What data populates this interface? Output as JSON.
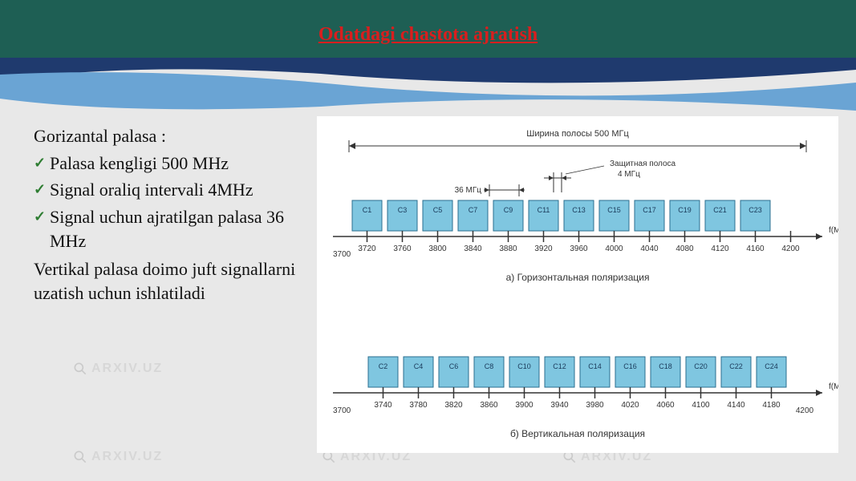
{
  "title": "Odatdagi chastota ajratish",
  "text": {
    "intro": "Gorizantal palasa :",
    "b1": "Palasa kengligi 500 MHz",
    "b2": "Signal oraliq intervali 4MHz",
    "b3": "Signal uchun ajratilgan palasa 36 MHz",
    "outro": "Vertikal palasa doimo juft signallarni uzatish uchun ishlatiladi"
  },
  "watermark": "ARXIV.UZ",
  "diagram": {
    "top": {
      "bandwidth_label": "Ширина полосы 500 МГц",
      "guard_label": "Защитная полоса",
      "guard_value": "4 МГц",
      "bw36_label": "36 МГц",
      "channels": [
        "C1",
        "C3",
        "C5",
        "C7",
        "C9",
        "C11",
        "C13",
        "C15",
        "C17",
        "C19",
        "C21",
        "C23"
      ],
      "ticks": [
        "3720",
        "3760",
        "3800",
        "3840",
        "3880",
        "3920",
        "3960",
        "4000",
        "4040",
        "4080",
        "4120",
        "4160",
        "4200"
      ],
      "start_label": "3700",
      "axis_name": "f(МГц)",
      "caption": "а) Горизонтальная поляризация"
    },
    "bot": {
      "channels": [
        "C2",
        "C4",
        "C6",
        "C8",
        "C10",
        "C12",
        "C14",
        "C16",
        "C18",
        "C20",
        "C22",
        "C24"
      ],
      "ticks": [
        "3740",
        "3780",
        "3820",
        "3860",
        "3900",
        "3940",
        "3980",
        "4020",
        "4060",
        "4100",
        "4140",
        "4180"
      ],
      "start_label": "3700",
      "end_label": "4200",
      "axis_name": "f(МГц)",
      "caption": "б) Вертикальная поляризация"
    },
    "colors": {
      "channel_fill": "#7fc6e0",
      "channel_stroke": "#2b6f8f",
      "axis": "#333333",
      "bg": "#ffffff"
    }
  },
  "theme": {
    "header_bg": "#1e5f54",
    "wave_dark": "#1f3a6e",
    "wave_light": "#6aa4d4",
    "title_color": "#d91e1e",
    "checkmark": "#2e7d32",
    "body_bg": "#e8e8e8"
  }
}
